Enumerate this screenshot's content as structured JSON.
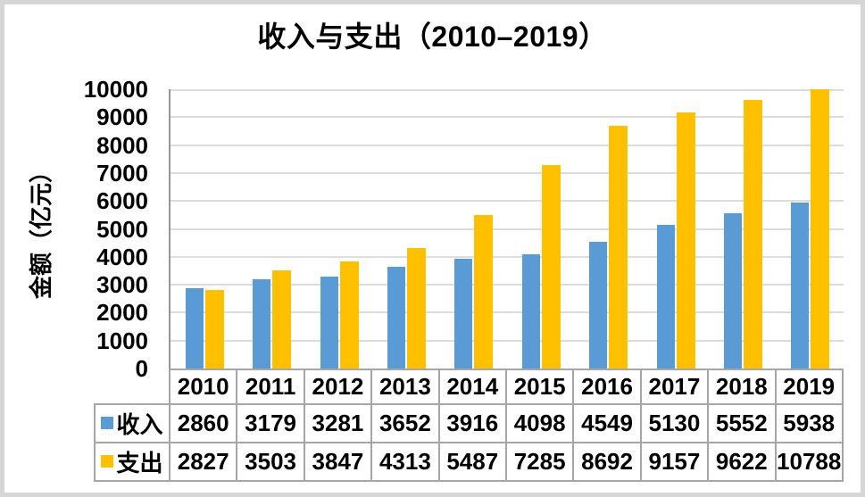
{
  "chart_data": {
    "type": "bar",
    "title": "收入与支出（2010–2019）",
    "ylabel": "金额（亿元）",
    "categories": [
      "2010",
      "2011",
      "2012",
      "2013",
      "2014",
      "2015",
      "2016",
      "2017",
      "2018",
      "2019"
    ],
    "series": [
      {
        "name": "收入",
        "color": "#5B9BD5",
        "values": [
          2860,
          3179,
          3281,
          3652,
          3916,
          4098,
          4549,
          5130,
          5552,
          5938
        ]
      },
      {
        "name": "支出",
        "color": "#FFC000",
        "values": [
          2827,
          3503,
          3847,
          4313,
          5487,
          7285,
          8692,
          9157,
          9622,
          10788
        ]
      }
    ],
    "ylim": [
      0,
      10000
    ],
    "ytick_step": 1000,
    "grid": true,
    "legend_position": "data-table-left"
  },
  "colors": {
    "background": "#FFFFFF",
    "frame_border": "#D6D6D6",
    "gridline": "#DCDCDC",
    "axis_line": "#969696",
    "table_border": "#A6A6A6",
    "text": "#000000",
    "series_income": "#5B9BD5",
    "series_expense": "#FFC000"
  }
}
